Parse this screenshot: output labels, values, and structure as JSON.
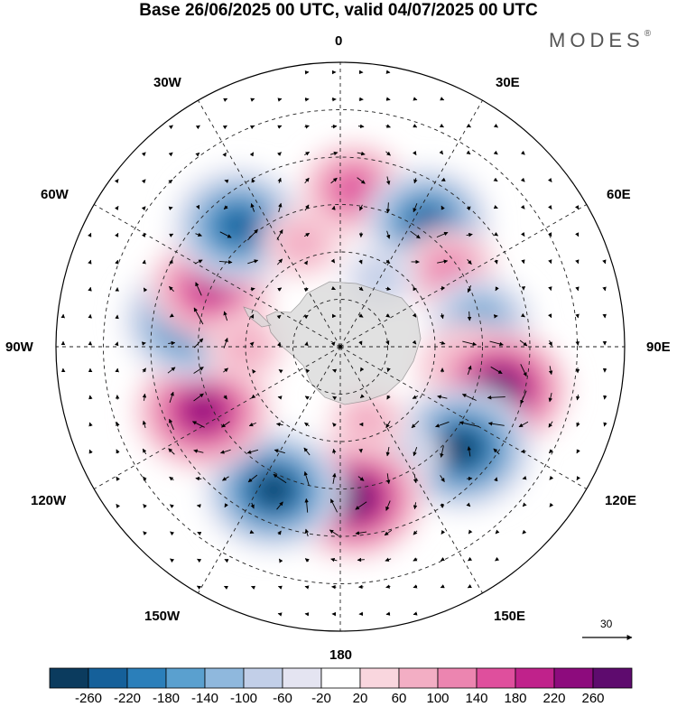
{
  "title": "Base 26/06/2025 00 UTC, valid 04/07/2025 00 UTC",
  "brand": "MODES",
  "brand_mark": "®",
  "longitude_labels": {
    "lon_0": "0",
    "lon_30e": "30E",
    "lon_60e": "60E",
    "lon_90e": "90E",
    "lon_120e": "120E",
    "lon_150e": "150E",
    "lon_180": "180",
    "lon_150w": "150W",
    "lon_120w": "120W",
    "lon_90w": "90W",
    "lon_60w": "60W",
    "lon_30w": "30W"
  },
  "reference_vector": {
    "value": "30"
  },
  "colorbar": {
    "labels": [
      "-260",
      "-220",
      "-180",
      "-140",
      "-100",
      "-60",
      "-20",
      "20",
      "60",
      "100",
      "140",
      "180",
      "220",
      "260"
    ],
    "colors": [
      "#0b3b5e",
      "#15609a",
      "#2b7fba",
      "#5aa0cf",
      "#8fb8dd",
      "#c2cfe8",
      "#e4e4f1",
      "#ffffff",
      "#f9d6de",
      "#f3aec4",
      "#ec85b0",
      "#df4f9d",
      "#c0228b",
      "#8d0b7d",
      "#5e0b6e"
    ]
  },
  "anomaly_features": [
    {
      "lon": 5,
      "lat": -40,
      "value": 140
    },
    {
      "lon": 35,
      "lat": -42,
      "value": -200
    },
    {
      "lon": 55,
      "lat": -48,
      "value": 110
    },
    {
      "lon": 80,
      "lat": -45,
      "value": -140
    },
    {
      "lon": 100,
      "lat": -48,
      "value": 150
    },
    {
      "lon": 105,
      "lat": -38,
      "value": 240
    },
    {
      "lon": 130,
      "lat": -40,
      "value": -250
    },
    {
      "lon": 150,
      "lat": -50,
      "value": -40
    },
    {
      "lon": 175,
      "lat": -42,
      "value": 240
    },
    {
      "lon": -155,
      "lat": -40,
      "value": -240
    },
    {
      "lon": -115,
      "lat": -42,
      "value": 230
    },
    {
      "lon": -80,
      "lat": -42,
      "value": -230
    },
    {
      "lon": -65,
      "lat": -45,
      "value": 190
    },
    {
      "lon": -40,
      "lat": -40,
      "value": -220
    },
    {
      "lon": -20,
      "lat": -55,
      "value": 60
    },
    {
      "lon": 160,
      "lat": -65,
      "value": 50
    },
    {
      "lon": -90,
      "lat": -60,
      "value": 60
    },
    {
      "lon": 30,
      "lat": -65,
      "value": -40
    }
  ]
}
